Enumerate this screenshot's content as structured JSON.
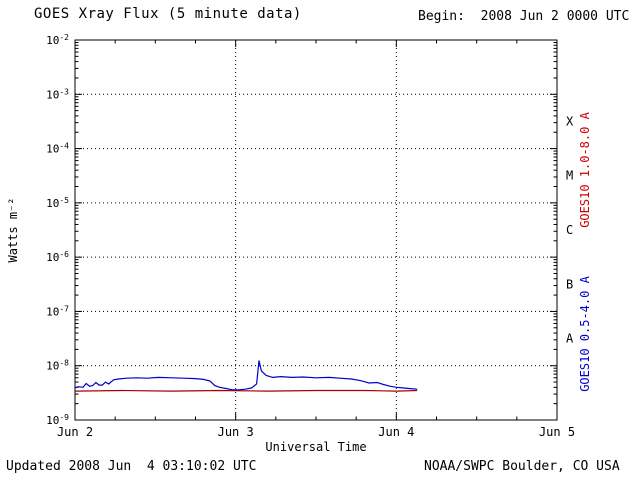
{
  "header": {
    "title": "GOES Xray Flux (5 minute data)",
    "begin_text": "Begin:  2008 Jun 2 0000 UTC"
  },
  "footer": {
    "updated": "Updated 2008 Jun  4 03:10:02 UTC",
    "credit": "NOAA/SWPC Boulder, CO USA"
  },
  "axes": {
    "y_label": "Watts m⁻²",
    "x_label": "Universal Time"
  },
  "side_labels": {
    "long_channel": "GOES10 1.0-8.0 A",
    "short_channel": "GOES10 0.5-4.0 A",
    "long_color": "#cc0000",
    "short_color": "#0000cc"
  },
  "chart_data": {
    "type": "line",
    "title": "GOES Xray Flux (5 minute data)",
    "xlabel": "Universal Time",
    "ylabel": "Watts m^-2",
    "x_range_days": [
      0,
      3
    ],
    "x_ticks": [
      {
        "pos": 0,
        "label": "Jun 2"
      },
      {
        "pos": 1,
        "label": "Jun 3"
      },
      {
        "pos": 2,
        "label": "Jun 4"
      },
      {
        "pos": 3,
        "label": "Jun 5"
      }
    ],
    "x_minor_step_days": 0.25,
    "x_grid_days": [
      1,
      2
    ],
    "y_scale": "log",
    "y_exponent_range": [
      -9,
      -2
    ],
    "y_tick_exponents": [
      -2,
      -3,
      -4,
      -5,
      -6,
      -7,
      -8,
      -9
    ],
    "y_grid_exponents": [
      -3,
      -4,
      -5,
      -6,
      -7,
      -8
    ],
    "flare_classes": [
      {
        "label": "X",
        "center_exponent": -3.5
      },
      {
        "label": "M",
        "center_exponent": -4.5
      },
      {
        "label": "C",
        "center_exponent": -5.5
      },
      {
        "label": "B",
        "center_exponent": -6.5
      },
      {
        "label": "A",
        "center_exponent": -7.5
      }
    ],
    "series": [
      {
        "name": "GOES10 1.0-8.0 A",
        "color": "#aa0000",
        "points": [
          [
            0.0,
            3.4e-09
          ],
          [
            0.3,
            3.5e-09
          ],
          [
            0.6,
            3.4e-09
          ],
          [
            0.9,
            3.5e-09
          ],
          [
            1.2,
            3.4e-09
          ],
          [
            1.5,
            3.5e-09
          ],
          [
            1.8,
            3.5e-09
          ],
          [
            2.0,
            3.4e-09
          ],
          [
            2.13,
            3.5e-09
          ]
        ]
      },
      {
        "name": "GOES10 0.5-4.0 A",
        "color": "#0000cc",
        "points": [
          [
            0.0,
            3.9e-09
          ],
          [
            0.02,
            4.1e-09
          ],
          [
            0.05,
            4e-09
          ],
          [
            0.07,
            4.7e-09
          ],
          [
            0.09,
            4.2e-09
          ],
          [
            0.11,
            4.3e-09
          ],
          [
            0.13,
            4.9e-09
          ],
          [
            0.15,
            4.4e-09
          ],
          [
            0.17,
            4.4e-09
          ],
          [
            0.19,
            5e-09
          ],
          [
            0.21,
            4.6e-09
          ],
          [
            0.24,
            5.5e-09
          ],
          [
            0.27,
            5.7e-09
          ],
          [
            0.32,
            5.9e-09
          ],
          [
            0.38,
            6e-09
          ],
          [
            0.45,
            5.9e-09
          ],
          [
            0.52,
            6.1e-09
          ],
          [
            0.6,
            6e-09
          ],
          [
            0.68,
            5.9e-09
          ],
          [
            0.75,
            5.8e-09
          ],
          [
            0.8,
            5.6e-09
          ],
          [
            0.84,
            5.2e-09
          ],
          [
            0.87,
            4.3e-09
          ],
          [
            0.9,
            4e-09
          ],
          [
            0.94,
            3.8e-09
          ],
          [
            0.98,
            3.6e-09
          ],
          [
            1.02,
            3.6e-09
          ],
          [
            1.06,
            3.7e-09
          ],
          [
            1.1,
            3.9e-09
          ],
          [
            1.13,
            4.6e-09
          ],
          [
            1.145,
            1.25e-08
          ],
          [
            1.16,
            8e-09
          ],
          [
            1.19,
            6.6e-09
          ],
          [
            1.23,
            6.1e-09
          ],
          [
            1.28,
            6.3e-09
          ],
          [
            1.35,
            6.1e-09
          ],
          [
            1.42,
            6.2e-09
          ],
          [
            1.5,
            6e-09
          ],
          [
            1.58,
            6.1e-09
          ],
          [
            1.65,
            5.9e-09
          ],
          [
            1.72,
            5.7e-09
          ],
          [
            1.78,
            5.3e-09
          ],
          [
            1.83,
            4.8e-09
          ],
          [
            1.88,
            4.9e-09
          ],
          [
            1.92,
            4.5e-09
          ],
          [
            1.96,
            4.2e-09
          ],
          [
            2.0,
            4e-09
          ],
          [
            2.04,
            3.9e-09
          ],
          [
            2.08,
            3.8e-09
          ],
          [
            2.13,
            3.7e-09
          ]
        ]
      }
    ]
  }
}
